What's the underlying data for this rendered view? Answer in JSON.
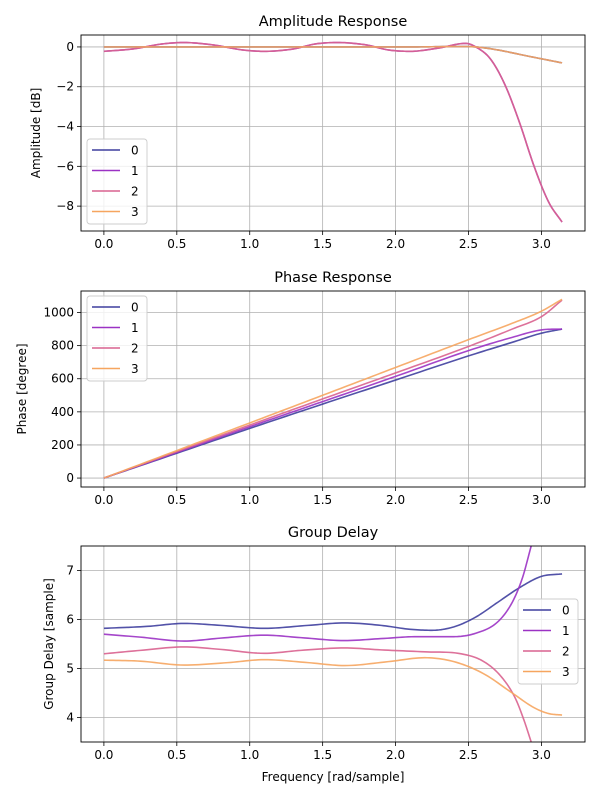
{
  "chart_data": [
    {
      "type": "line",
      "title": "Amplitude Response",
      "xlabel": "",
      "ylabel": "Amplitude [dB]",
      "xlim": [
        -0.157,
        3.299
      ],
      "ylim": [
        -9.25,
        0.6
      ],
      "xticks": [
        0.0,
        0.5,
        1.0,
        1.5,
        2.0,
        2.5,
        3.0
      ],
      "xtick_labels": [
        "0.0",
        "0.5",
        "1.0",
        "1.5",
        "2.0",
        "2.5",
        "3.0"
      ],
      "yticks": [
        -8,
        -6,
        -4,
        -2,
        0
      ],
      "ytick_labels": [
        "−8",
        "−6",
        "−4",
        "−2",
        "0"
      ],
      "grid": true,
      "legend_position": "lower-left",
      "series": [
        {
          "name": "0",
          "color": "#3f3f9e",
          "x": [
            0,
            0.3,
            0.6,
            0.9,
            1.2,
            1.5,
            1.8,
            2.1,
            2.4,
            2.55,
            2.7,
            2.9,
            3.1416
          ],
          "y": [
            0,
            0,
            0,
            0,
            0,
            0,
            0,
            0,
            0.02,
            0,
            -0.15,
            -0.45,
            -0.8
          ]
        },
        {
          "name": "1",
          "color": "#9b32c4",
          "x": [
            0,
            0.2,
            0.4,
            0.55,
            0.75,
            0.95,
            1.1,
            1.3,
            1.45,
            1.6,
            1.8,
            1.95,
            2.1,
            2.3,
            2.48,
            2.55,
            2.65,
            2.75,
            2.85,
            2.95,
            3.05,
            3.1416
          ],
          "y": [
            -0.22,
            -0.1,
            0.15,
            0.22,
            0.1,
            -0.15,
            -0.22,
            -0.1,
            0.15,
            0.22,
            0.1,
            -0.15,
            -0.22,
            -0.05,
            0.18,
            0.0,
            -0.6,
            -1.9,
            -3.8,
            -6.0,
            -7.8,
            -8.8
          ]
        },
        {
          "name": "2",
          "color": "#d9628f",
          "x": [
            0,
            0.2,
            0.4,
            0.55,
            0.75,
            0.95,
            1.1,
            1.3,
            1.45,
            1.6,
            1.8,
            1.95,
            2.1,
            2.3,
            2.48,
            2.55,
            2.65,
            2.75,
            2.85,
            2.95,
            3.05,
            3.1416
          ],
          "y": [
            -0.22,
            -0.1,
            0.15,
            0.22,
            0.1,
            -0.15,
            -0.22,
            -0.1,
            0.15,
            0.22,
            0.1,
            -0.15,
            -0.22,
            -0.05,
            0.18,
            0.0,
            -0.6,
            -1.9,
            -3.8,
            -6.0,
            -7.8,
            -8.8
          ]
        },
        {
          "name": "3",
          "color": "#f6a55f",
          "x": [
            0,
            0.3,
            0.6,
            0.9,
            1.2,
            1.5,
            1.8,
            2.1,
            2.4,
            2.55,
            2.7,
            2.9,
            3.1416
          ],
          "y": [
            0,
            0,
            0,
            0,
            0,
            0,
            0,
            0,
            0.02,
            0,
            -0.15,
            -0.45,
            -0.8
          ]
        }
      ]
    },
    {
      "type": "line",
      "title": "Phase Response",
      "xlabel": "",
      "ylabel": "Phase [degree]",
      "xlim": [
        -0.157,
        3.299
      ],
      "ylim": [
        -54,
        1130
      ],
      "xticks": [
        0.0,
        0.5,
        1.0,
        1.5,
        2.0,
        2.5,
        3.0
      ],
      "xtick_labels": [
        "0.0",
        "0.5",
        "1.0",
        "1.5",
        "2.0",
        "2.5",
        "3.0"
      ],
      "yticks": [
        0,
        200,
        400,
        600,
        800,
        1000
      ],
      "ytick_labels": [
        "0",
        "200",
        "400",
        "600",
        "800",
        "1000"
      ],
      "grid": true,
      "legend_position": "upper-left",
      "series": [
        {
          "name": "0",
          "color": "#3f3f9e",
          "x": [
            0,
            0.5,
            1.0,
            1.5,
            2.0,
            2.5,
            2.8,
            3.0,
            3.1416
          ],
          "y": [
            0,
            150,
            300,
            447,
            592,
            738,
            820,
            875,
            900
          ]
        },
        {
          "name": "1",
          "color": "#9b32c4",
          "x": [
            0,
            0.5,
            1.0,
            1.5,
            2.0,
            2.5,
            2.8,
            3.0,
            3.1416
          ],
          "y": [
            0,
            155,
            310,
            462,
            614,
            770,
            850,
            895,
            900
          ]
        },
        {
          "name": "2",
          "color": "#d9628f",
          "x": [
            0,
            0.5,
            1.0,
            1.5,
            2.0,
            2.5,
            2.8,
            3.0,
            3.1416
          ],
          "y": [
            0,
            160,
            320,
            478,
            635,
            795,
            900,
            975,
            1075
          ]
        },
        {
          "name": "3",
          "color": "#f6a55f",
          "x": [
            0,
            0.5,
            1.0,
            1.5,
            2.0,
            2.5,
            2.8,
            3.0,
            3.1416
          ],
          "y": [
            0,
            166,
            333,
            500,
            668,
            836,
            935,
            1008,
            1080
          ]
        }
      ]
    },
    {
      "type": "line",
      "title": "Group Delay",
      "xlabel": "Frequency [rad/sample]",
      "ylabel": "Group Delay [sample]",
      "xlim": [
        -0.157,
        3.299
      ],
      "ylim": [
        3.5,
        7.5
      ],
      "xticks": [
        0.0,
        0.5,
        1.0,
        1.5,
        2.0,
        2.5,
        3.0
      ],
      "xtick_labels": [
        "0.0",
        "0.5",
        "1.0",
        "1.5",
        "2.0",
        "2.5",
        "3.0"
      ],
      "yticks": [
        4,
        5,
        6,
        7
      ],
      "ytick_labels": [
        "4",
        "5",
        "6",
        "7"
      ],
      "grid": true,
      "legend_position": "center-right",
      "series": [
        {
          "name": "0",
          "color": "#3f3f9e",
          "x": [
            0,
            0.3,
            0.55,
            0.8,
            1.1,
            1.4,
            1.65,
            1.9,
            2.1,
            2.25,
            2.4,
            2.55,
            2.7,
            2.85,
            3.0,
            3.1416
          ],
          "y": [
            5.82,
            5.86,
            5.92,
            5.88,
            5.82,
            5.88,
            5.93,
            5.88,
            5.8,
            5.78,
            5.85,
            6.05,
            6.35,
            6.65,
            6.88,
            6.93
          ]
        },
        {
          "name": "1",
          "color": "#9b32c4",
          "x": [
            0,
            0.25,
            0.55,
            0.8,
            1.1,
            1.35,
            1.65,
            1.9,
            2.15,
            2.4,
            2.55,
            2.7,
            2.8,
            2.87,
            2.93
          ],
          "y": [
            5.7,
            5.64,
            5.56,
            5.62,
            5.68,
            5.63,
            5.57,
            5.61,
            5.65,
            5.65,
            5.72,
            5.95,
            6.35,
            6.85,
            7.5
          ]
        },
        {
          "name": "2",
          "color": "#d9628f",
          "x": [
            0,
            0.25,
            0.55,
            0.8,
            1.1,
            1.35,
            1.65,
            1.9,
            2.2,
            2.45,
            2.6,
            2.72,
            2.82,
            2.88,
            2.93
          ],
          "y": [
            5.3,
            5.37,
            5.44,
            5.39,
            5.31,
            5.37,
            5.42,
            5.38,
            5.34,
            5.3,
            5.15,
            4.85,
            4.4,
            3.95,
            3.5
          ]
        },
        {
          "name": "3",
          "color": "#f6a55f",
          "x": [
            0,
            0.25,
            0.55,
            0.85,
            1.1,
            1.4,
            1.65,
            1.95,
            2.2,
            2.4,
            2.6,
            2.8,
            2.95,
            3.05,
            3.1416
          ],
          "y": [
            5.17,
            5.15,
            5.07,
            5.12,
            5.18,
            5.12,
            5.06,
            5.14,
            5.22,
            5.14,
            4.9,
            4.5,
            4.2,
            4.08,
            4.05
          ]
        }
      ]
    }
  ]
}
